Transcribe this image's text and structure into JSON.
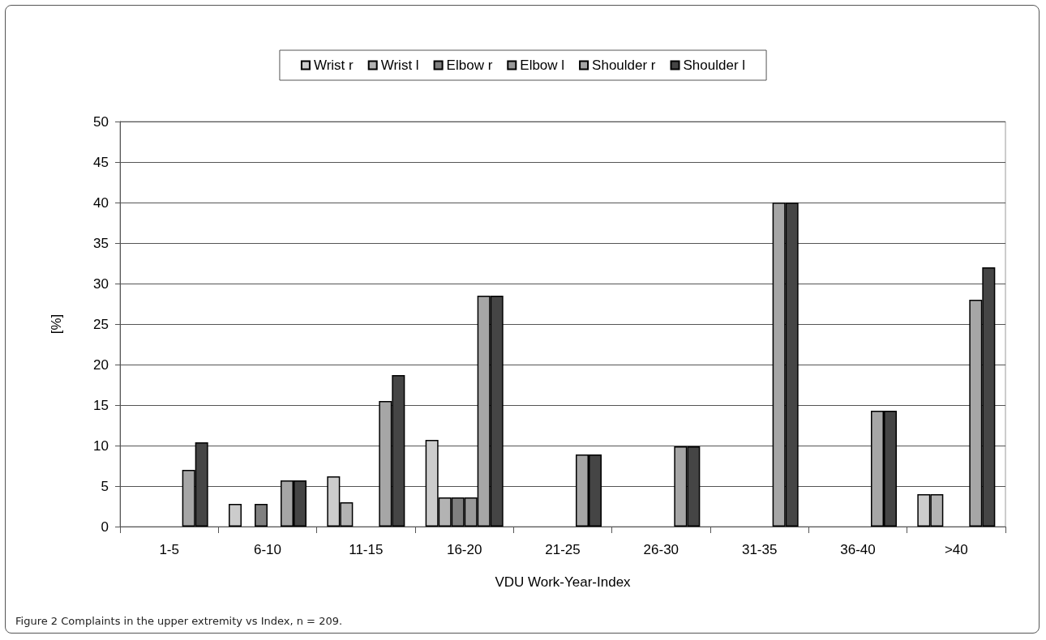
{
  "chart_data": {
    "type": "bar",
    "title": "Figure 2 Complaints in the upper extremity vs Index, n = 209.",
    "xlabel": "VDU Work-Year-Index",
    "ylabel": "[%]",
    "categories": [
      "1-5",
      "6-10",
      "11-15",
      "16-20",
      "21-25",
      "26-30",
      "31-35",
      "36-40",
      ">40"
    ],
    "series": [
      {
        "name": "Wrist r",
        "color": "#cccccc",
        "values": [
          null,
          2.8,
          6.2,
          10.7,
          null,
          null,
          null,
          null,
          4
        ]
      },
      {
        "name": "Wrist l",
        "color": "#b3b3b3",
        "values": [
          null,
          null,
          3.0,
          3.6,
          null,
          null,
          null,
          null,
          4
        ]
      },
      {
        "name": "Elbow r",
        "color": "#808080",
        "values": [
          null,
          2.8,
          null,
          3.6,
          null,
          null,
          null,
          null,
          null
        ]
      },
      {
        "name": "Elbow l",
        "color": "#999999",
        "values": [
          null,
          null,
          null,
          3.6,
          null,
          null,
          null,
          null,
          null
        ]
      },
      {
        "name": "Shoulder r",
        "color": "#a6a6a6",
        "values": [
          7,
          5.7,
          15.5,
          28.5,
          8.9,
          9.9,
          40,
          14.3,
          28
        ]
      },
      {
        "name": "Shoulder l",
        "color": "#454545",
        "values": [
          10.4,
          5.7,
          18.7,
          28.5,
          8.9,
          9.9,
          40,
          14.3,
          32
        ]
      }
    ],
    "ylim": [
      0,
      50
    ],
    "yticks": [
      0,
      5,
      10,
      15,
      20,
      25,
      30,
      35,
      40,
      45,
      50
    ],
    "grid": "y",
    "legend": "top"
  }
}
